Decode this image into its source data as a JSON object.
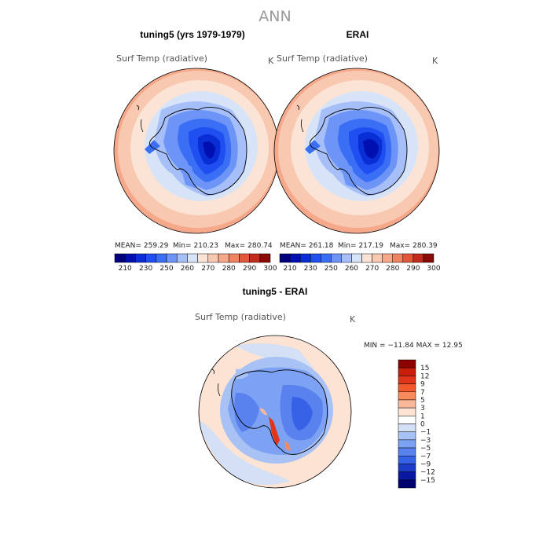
{
  "title": "ANN",
  "chart_data": [
    {
      "type": "heatmap",
      "title": "tuning5 (yrs 1979-1979)",
      "variable": "Surf Temp (radiative)",
      "units": "K",
      "stats": {
        "mean_label": "MEAN=",
        "mean": "259.29",
        "min_label": "Min=",
        "min": "210.23",
        "max_label": "Max=",
        "max": "280.74"
      },
      "colorbar": {
        "colors": [
          "#00007f",
          "#0010b0",
          "#0a2ed6",
          "#1f4ff0",
          "#3a6ef5",
          "#6d95f7",
          "#a6bff8",
          "#d7e3f7",
          "#fbe4d6",
          "#f9c8b0",
          "#f5a88a",
          "#f08462",
          "#e2573a",
          "#c22b1c",
          "#8a0a06"
        ],
        "labels": [
          "210",
          "230",
          "250",
          "260",
          "270",
          "280",
          "290",
          "300"
        ]
      }
    },
    {
      "type": "heatmap",
      "title": "ERAI",
      "variable": "Surf Temp (radiative)",
      "units": "K",
      "stats": {
        "mean_label": "MEAN=",
        "mean": "261.18",
        "min_label": "Min=",
        "min": "217.19",
        "max_label": "Max=",
        "max": "280.39"
      },
      "colorbar": {
        "colors": [
          "#00007f",
          "#0010b0",
          "#0a2ed6",
          "#1f4ff0",
          "#3a6ef5",
          "#6d95f7",
          "#a6bff8",
          "#d7e3f7",
          "#fbe4d6",
          "#f9c8b0",
          "#f5a88a",
          "#f08462",
          "#e2573a",
          "#c22b1c",
          "#8a0a06"
        ],
        "labels": [
          "210",
          "230",
          "250",
          "260",
          "270",
          "280",
          "290",
          "300"
        ]
      }
    },
    {
      "type": "heatmap",
      "title": "tuning5 - ERAI",
      "variable": "Surf Temp (radiative)",
      "units": "K",
      "stats_text": "MIN = −11.84  MAX =   12.95",
      "colorbar": {
        "colors": [
          "#8b0000",
          "#c81e0a",
          "#e0351a",
          "#f25a2d",
          "#f88a5c",
          "#fab89a",
          "#fde3d3",
          "#ffffff",
          "#d3e0f5",
          "#a9c2f5",
          "#7ea2f3",
          "#5a82ef",
          "#3562e6",
          "#1a3cc9",
          "#0818a0",
          "#00006e"
        ],
        "labels": [
          "15",
          "12",
          "9",
          "7",
          "5",
          "3",
          "1",
          "0",
          "−1",
          "−3",
          "−5",
          "−7",
          "−9",
          "−12",
          "−15"
        ]
      }
    }
  ]
}
